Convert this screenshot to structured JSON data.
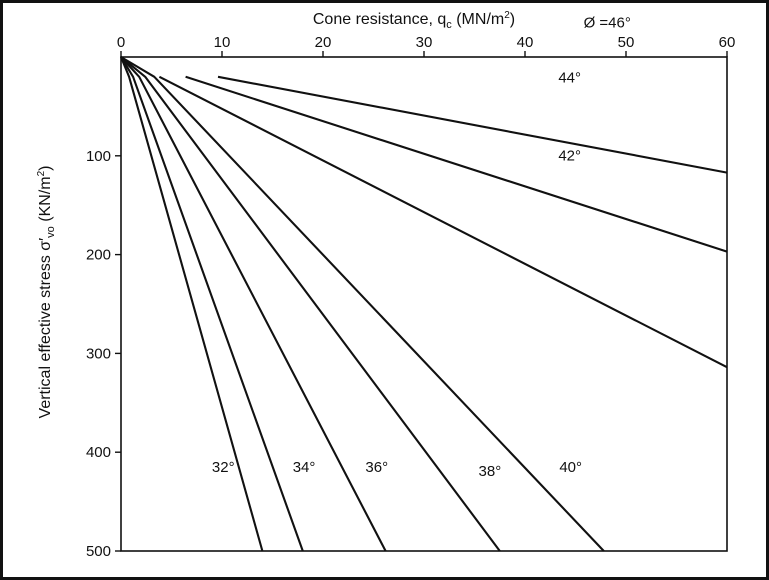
{
  "chart_data": {
    "type": "line",
    "title": "",
    "xlabel": "Cone resistance, q",
    "xlabel_sub": "c",
    "xlabel_unit": "(MN/m",
    "xlabel_unit_sup": "2",
    "xlabel_close": ")",
    "ylabel": "Vertical effective stress σ′",
    "ylabel_sub": "vo",
    "ylabel_unit": " (KN/m",
    "ylabel_unit_sup": "2",
    "ylabel_close": ")",
    "xlim": [
      0,
      60
    ],
    "ylim": [
      0,
      500
    ],
    "y_inverted": true,
    "x_axis_position": "top",
    "x_ticks": [
      0,
      10,
      20,
      30,
      40,
      50,
      60
    ],
    "y_ticks": [
      100,
      200,
      300,
      400,
      500
    ],
    "grid": false,
    "series": [
      {
        "name": "32°",
        "points": [
          [
            0,
            0
          ],
          [
            0.8,
            20
          ],
          [
            14.0,
            500
          ]
        ],
        "label_at": [
          9,
          420
        ]
      },
      {
        "name": "34°",
        "points": [
          [
            0,
            0
          ],
          [
            1.2,
            20
          ],
          [
            18.0,
            500
          ]
        ],
        "label_at": [
          17,
          420
        ]
      },
      {
        "name": "36°",
        "points": [
          [
            0,
            0
          ],
          [
            1.8,
            20
          ],
          [
            26.2,
            500
          ]
        ],
        "label_at": [
          24.2,
          420
        ]
      },
      {
        "name": "38°",
        "points": [
          [
            0,
            0
          ],
          [
            2.4,
            20
          ],
          [
            37.5,
            500
          ]
        ],
        "label_at": [
          35.4,
          424
        ]
      },
      {
        "name": "40°",
        "points": [
          [
            0,
            0
          ],
          [
            3.3,
            20
          ],
          [
            47.8,
            500
          ]
        ],
        "label_at": [
          43.4,
          420
        ]
      },
      {
        "name": "42°",
        "points": [
          [
            3.8,
            20
          ],
          [
            60,
            314
          ]
        ],
        "label_at": [
          43.3,
          105
        ]
      },
      {
        "name": "44°",
        "points": [
          [
            6.4,
            20
          ],
          [
            60,
            197
          ]
        ],
        "label_at": [
          43.3,
          26
        ]
      },
      {
        "name": "Ø =46°",
        "points": [
          [
            9.6,
            20
          ],
          [
            60,
            117
          ]
        ],
        "label_at": [
          45.8,
          -30
        ]
      }
    ]
  }
}
